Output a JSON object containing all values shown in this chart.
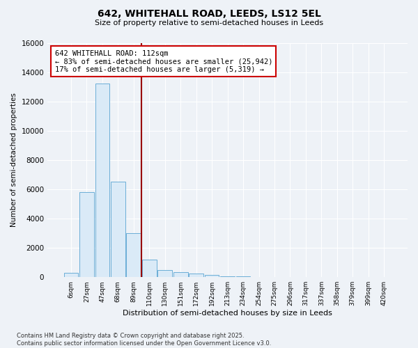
{
  "title": "642, WHITEHALL ROAD, LEEDS, LS12 5EL",
  "subtitle": "Size of property relative to semi-detached houses in Leeds",
  "xlabel": "Distribution of semi-detached houses by size in Leeds",
  "ylabel": "Number of semi-detached properties",
  "bar_labels": [
    "6sqm",
    "27sqm",
    "47sqm",
    "68sqm",
    "89sqm",
    "110sqm",
    "130sqm",
    "151sqm",
    "172sqm",
    "192sqm",
    "213sqm",
    "234sqm",
    "254sqm",
    "275sqm",
    "296sqm",
    "317sqm",
    "337sqm",
    "358sqm",
    "379sqm",
    "399sqm",
    "420sqm"
  ],
  "bar_values": [
    300,
    5800,
    13200,
    6500,
    3000,
    1200,
    500,
    350,
    250,
    150,
    80,
    50,
    30,
    10,
    5,
    5,
    3,
    2,
    1,
    1,
    1
  ],
  "bar_face_color": "#daeaf7",
  "bar_edge_color": "#6baed6",
  "property_line_x": 4.5,
  "property_line_color": "#990000",
  "annotation_text": "642 WHITEHALL ROAD: 112sqm\n← 83% of semi-detached houses are smaller (25,942)\n17% of semi-detached houses are larger (5,319) →",
  "annotation_box_edgecolor": "#cc0000",
  "ylim": [
    0,
    16000
  ],
  "yticks": [
    0,
    2000,
    4000,
    6000,
    8000,
    10000,
    12000,
    14000,
    16000
  ],
  "footnote": "Contains HM Land Registry data © Crown copyright and database right 2025.\nContains public sector information licensed under the Open Government Licence v3.0.",
  "bg_color": "#eef2f7",
  "plot_bg_color": "#eef2f7"
}
